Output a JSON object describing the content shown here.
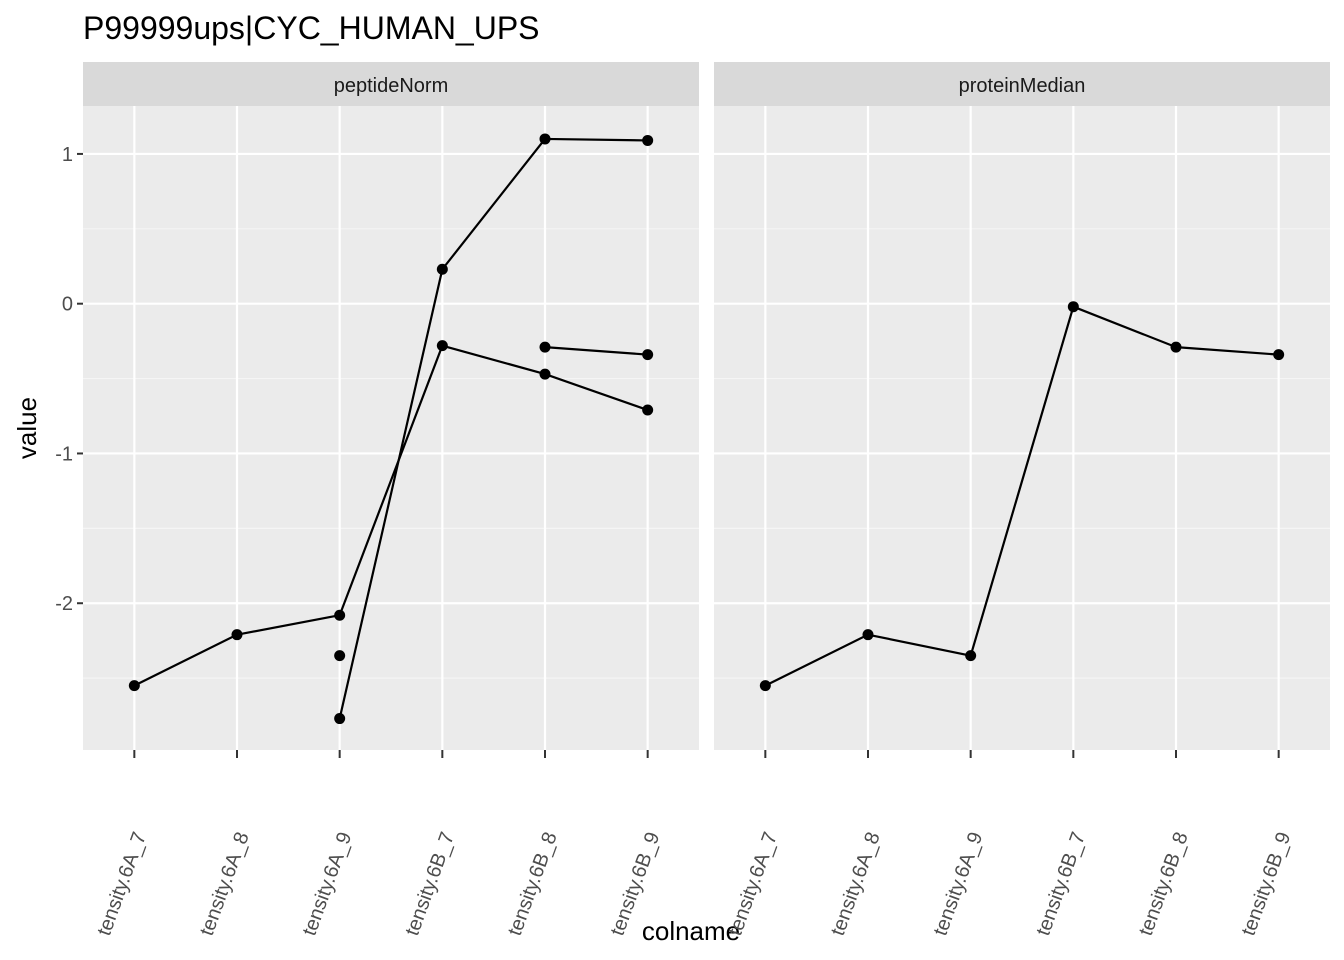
{
  "title": "P99999ups|CYC_HUMAN_UPS",
  "chart_data": {
    "type": "line",
    "title": "P99999ups|CYC_HUMAN_UPS",
    "xlabel": "colname",
    "ylabel": "value",
    "ylim": [
      -2.98,
      1.32
    ],
    "y_ticks": [
      -2,
      -1,
      0,
      1
    ],
    "y_tick_labels": [
      "-2",
      "-1",
      "0",
      "1"
    ],
    "categories": [
      "tensity.6A_7",
      "tensity.6A_8",
      "tensity.6A_9",
      "tensity.6B_7",
      "tensity.6B_8",
      "tensity.6B_9"
    ],
    "grid": true,
    "facets": [
      {
        "label": "peptideNorm",
        "lines": [
          {
            "points": [
              [
                "tensity.6A_7",
                -2.55
              ],
              [
                "tensity.6A_8",
                -2.21
              ],
              [
                "tensity.6A_9",
                -2.08
              ],
              [
                "tensity.6B_7",
                -0.28
              ],
              [
                "tensity.6B_8",
                -0.47
              ],
              [
                "tensity.6B_9",
                -0.71
              ]
            ]
          },
          {
            "points": [
              [
                "tensity.6A_9",
                -2.77
              ],
              [
                "tensity.6B_7",
                0.23
              ],
              [
                "tensity.6B_8",
                1.1
              ],
              [
                "tensity.6B_9",
                1.09
              ]
            ]
          },
          {
            "points": [
              [
                "tensity.6B_8",
                -0.29
              ],
              [
                "tensity.6B_9",
                -0.34
              ]
            ]
          },
          {
            "points": [
              [
                "tensity.6A_9",
                -2.35
              ]
            ]
          }
        ]
      },
      {
        "label": "proteinMedian",
        "lines": [
          {
            "points": [
              [
                "tensity.6A_7",
                -2.55
              ],
              [
                "tensity.6A_8",
                -2.21
              ],
              [
                "tensity.6A_9",
                -2.35
              ],
              [
                "tensity.6B_7",
                -0.02
              ],
              [
                "tensity.6B_8",
                -0.29
              ],
              [
                "tensity.6B_9",
                -0.34
              ]
            ]
          }
        ]
      }
    ]
  }
}
